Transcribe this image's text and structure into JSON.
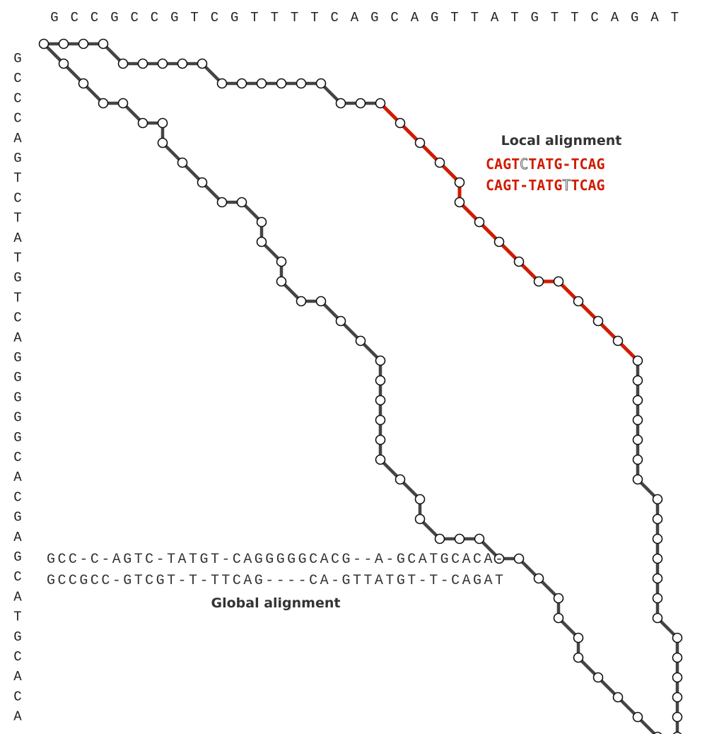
{
  "seq_top": [
    "G",
    "C",
    "C",
    "G",
    "C",
    "C",
    "G",
    "T",
    "C",
    "G",
    "T",
    "T",
    "T",
    "T",
    "C",
    "A",
    "G",
    "C",
    "A",
    "G",
    "T",
    "T",
    "A",
    "T",
    "G",
    "T",
    "T",
    "C",
    "A",
    "G",
    "A",
    "T"
  ],
  "seq_left": [
    "G",
    "C",
    "C",
    "C",
    "A",
    "G",
    "T",
    "C",
    "T",
    "A",
    "T",
    "G",
    "T",
    "C",
    "A",
    "G",
    "G",
    "G",
    "G",
    "G",
    "C",
    "A",
    "C",
    "G",
    "A",
    "G",
    "C",
    "A",
    "T",
    "G",
    "C",
    "A",
    "C",
    "A"
  ],
  "local_alignment": {
    "title": "Local alignment",
    "row1": [
      {
        "text": "CAGT",
        "type": "match"
      },
      {
        "text": "C",
        "type": "mismatch"
      },
      {
        "text": "TATG",
        "type": "match"
      },
      {
        "text": "-",
        "type": "gap"
      },
      {
        "text": "TCAG",
        "type": "match"
      }
    ],
    "row2": [
      {
        "text": "CAGT",
        "type": "match"
      },
      {
        "text": "-",
        "type": "gap"
      },
      {
        "text": "TATG",
        "type": "match"
      },
      {
        "text": "T",
        "type": "mismatch"
      },
      {
        "text": "TCAG",
        "type": "match"
      }
    ]
  },
  "global_alignment": {
    "title": "Global alignment",
    "row1": "GCC-C-AGTC-TATGT-CAGGGGGCACG--A-GCATGCACA-",
    "row2": "GCCGCC-GTCGT-T-TTCAG----CA-GTTATGT-T-CAGAT"
  },
  "paths": {
    "upper": "RRRDRRRRDRRRRRDRRDDDDDRDDDDDRDDDDDDDDDDDDDDDDDDDDDDRDDDDDDDDDDDDD",
    "lower": "DDDRDDRDDDDRDDDDDDDDDDRDDDDDDDDDDDDDDDDDDDRRDDDDDDDDDDDDDDDDDDDDDRDDDDDDDDDDDDDRR",
    "local_path": "DDDDDDDDDDRDDDDDDD"
  },
  "colors": {
    "local": "#d01c00",
    "mismatch": "#555555",
    "edge": "#444444",
    "node_stroke": "#111111",
    "text": "#222222"
  }
}
